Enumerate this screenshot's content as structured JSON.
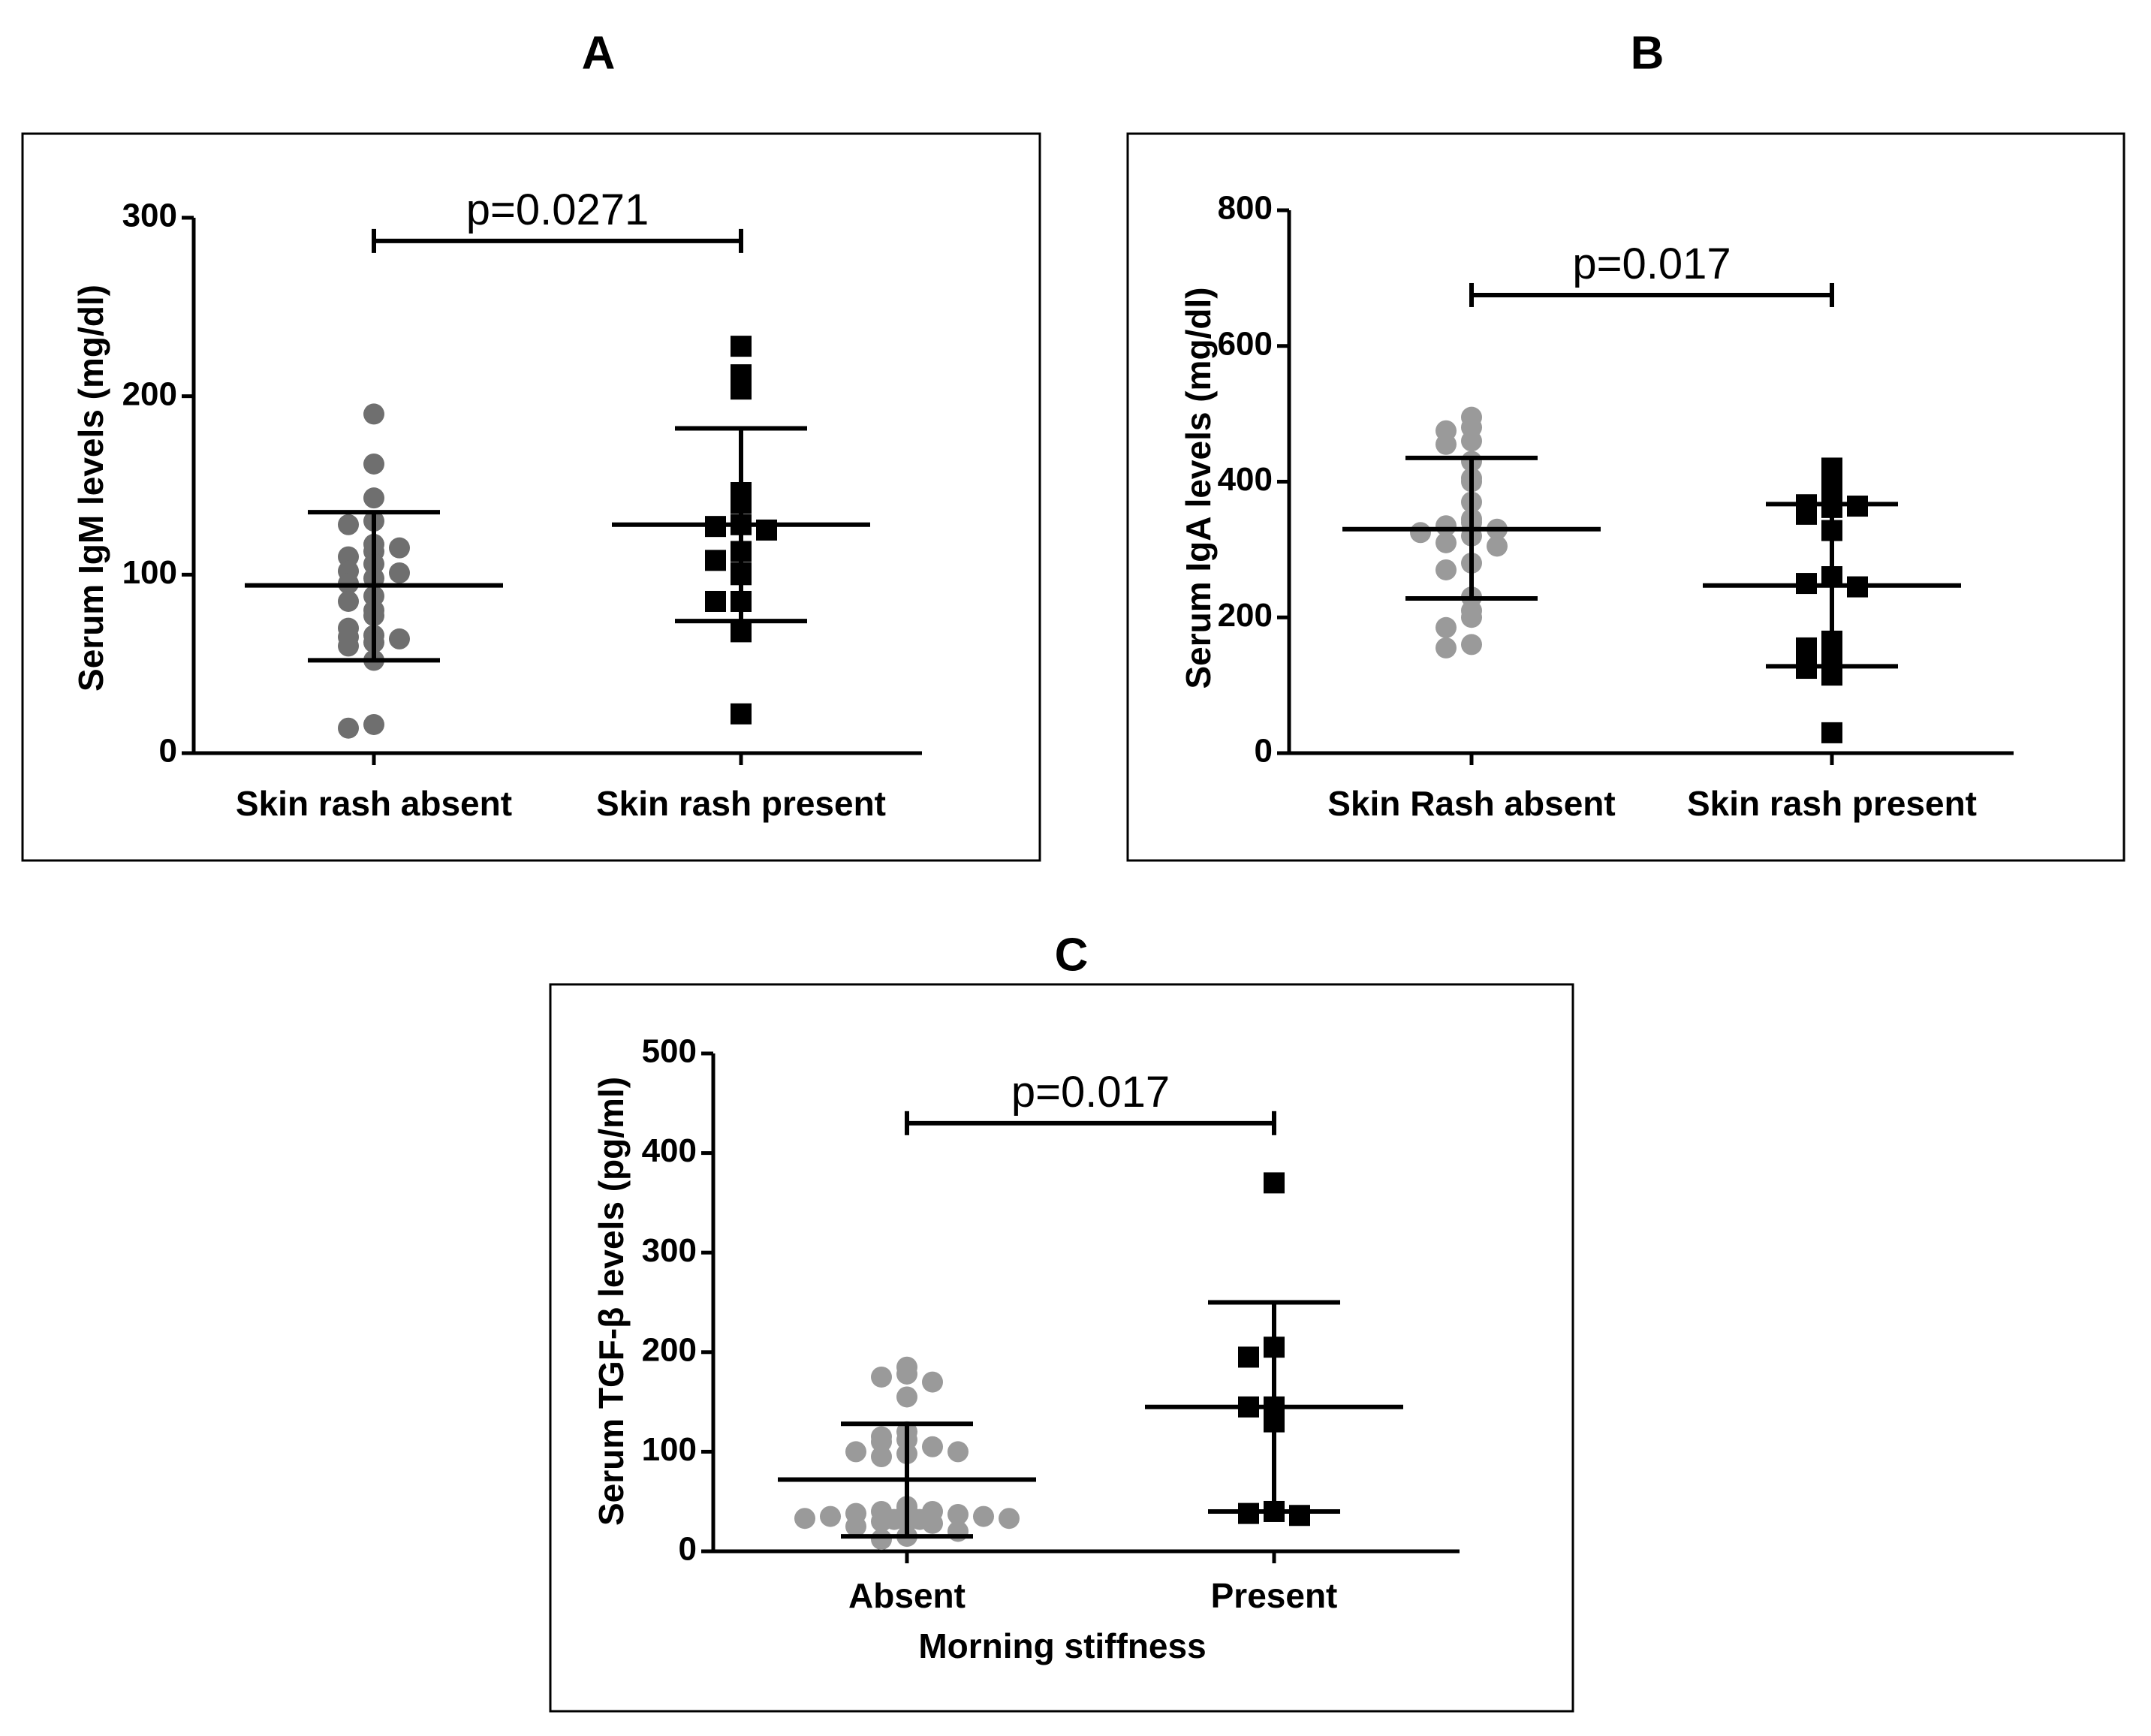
{
  "chart_data": [
    {
      "panel": "A",
      "type": "scatter",
      "ylabel": "Serum IgM levels (mg/dl)",
      "xlabel": "",
      "ylim": [
        0,
        300
      ],
      "yticks": [
        "0",
        "100",
        "200",
        "300"
      ],
      "categories": [
        "Skin rash absent",
        "Skin rash present"
      ],
      "series": [
        {
          "name": "Skin rash absent",
          "marker": "circle",
          "color": "#6f6f6f",
          "values": [
            190,
            162,
            143,
            130,
            128,
            113,
            110,
            106,
            102,
            101,
            98,
            95,
            117,
            115,
            88,
            85,
            80,
            77,
            70,
            66,
            65,
            64,
            62,
            60,
            52,
            16,
            14
          ],
          "mean": 94,
          "sd_low": 52,
          "sd_high": 135
        },
        {
          "name": "Skin rash present",
          "marker": "square",
          "color": "#000000",
          "values": [
            228,
            212,
            204,
            146,
            140,
            128,
            127,
            125,
            113,
            108,
            101,
            100,
            85,
            85,
            68,
            22
          ],
          "mean": 128,
          "sd_low": 74,
          "sd_high": 182
        }
      ],
      "annotation": {
        "text": "p=0.0271",
        "from": 0,
        "to": 1,
        "y": 287
      }
    },
    {
      "panel": "B",
      "type": "scatter",
      "ylabel": "Serum  IgA levels  (mg/dl)",
      "xlabel": "",
      "ylim": [
        0,
        800
      ],
      "yticks": [
        "0",
        "200",
        "400",
        "600",
        "800"
      ],
      "categories": [
        "Skin Rash absent",
        "Skin rash present"
      ],
      "series": [
        {
          "name": "Skin Rash absent",
          "marker": "circle",
          "color": "#9a9a9a",
          "values": [
            495,
            480,
            475,
            460,
            455,
            430,
            405,
            400,
            370,
            345,
            340,
            335,
            330,
            325,
            320,
            310,
            305,
            280,
            270,
            230,
            210,
            200,
            185,
            160,
            155
          ],
          "mean": 330,
          "sd_low": 228,
          "sd_high": 435
        },
        {
          "name": "Skin rash present",
          "marker": "square",
          "color": "#000000",
          "values": [
            420,
            392,
            375,
            366,
            364,
            362,
            352,
            328,
            260,
            250,
            245,
            165,
            160,
            155,
            130,
            125,
            115,
            30
          ],
          "mean": 247,
          "sd_low": 128,
          "sd_high": 367
        }
      ],
      "annotation": {
        "text": "p=0.017",
        "from": 0,
        "to": 1,
        "y": 675
      }
    },
    {
      "panel": "C",
      "type": "scatter",
      "ylabel": "Serum TGF-β levels (pg/ml)",
      "xlabel": "Morning stiffness",
      "ylim": [
        0,
        500
      ],
      "yticks": [
        "0",
        "100",
        "200",
        "300",
        "400",
        "500"
      ],
      "categories": [
        "Absent",
        "Present"
      ],
      "series": [
        {
          "name": "Absent",
          "marker": "circle",
          "color": "#9a9a9a",
          "values": [
            185,
            178,
            175,
            170,
            155,
            120,
            115,
            112,
            110,
            105,
            100,
            100,
            98,
            95,
            45,
            42,
            40,
            40,
            38,
            37,
            35,
            35,
            33,
            33,
            32,
            32,
            30,
            30,
            28,
            25,
            20,
            15,
            12
          ],
          "mean": 72,
          "sd_low": 15,
          "sd_high": 128
        },
        {
          "name": "Present",
          "marker": "square",
          "color": "#000000",
          "values": [
            370,
            205,
            195,
            145,
            145,
            130,
            40,
            38,
            36
          ],
          "mean": 145,
          "sd_low": 40,
          "sd_high": 250
        }
      ],
      "annotation": {
        "text": "p=0.017",
        "from": 0,
        "to": 1,
        "y": 430
      }
    }
  ]
}
